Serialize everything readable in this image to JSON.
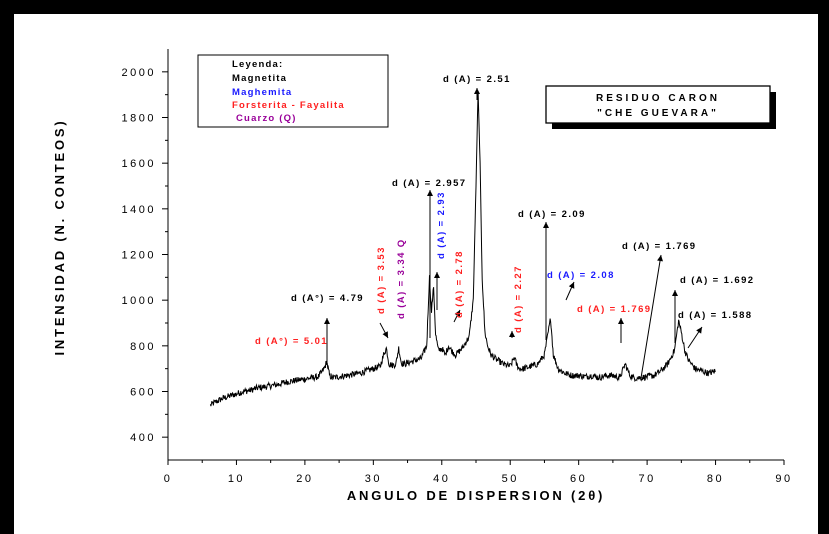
{
  "colors": {
    "magnetita": "#000000",
    "maghemita": "#1a1aff",
    "forsterita": "#ff2020",
    "cuarzo": "#990099",
    "line": "#000000"
  },
  "legend": {
    "title": "Leyenda:",
    "items": [
      {
        "label": "Magnetita",
        "color": "#000000"
      },
      {
        "label": "Maghemita",
        "color": "#1a1aff"
      },
      {
        "label": "Forsterita - Fayalita",
        "color": "#ff2020"
      },
      {
        "label": "Cuarzo (Q)",
        "color": "#990099"
      }
    ]
  },
  "sample_box": {
    "line1": "RESIDUO CARON",
    "line2": "\"CHE GUEVARA\""
  },
  "chart_data": {
    "type": "line",
    "title": "",
    "xlabel": "ANGULO DE DISPERSION (2θ)",
    "ylabel": "INTENSIDAD (N. CONTEOS)",
    "xlim": [
      0,
      90
    ],
    "ylim": [
      300,
      2100
    ],
    "xticks": [
      0,
      10,
      20,
      30,
      40,
      50,
      60,
      70,
      80,
      90
    ],
    "yticks": [
      400,
      600,
      800,
      1000,
      1200,
      1400,
      1600,
      1800,
      2000
    ],
    "grid": false,
    "series": [
      {
        "color": "#000000",
        "x": [
          6.2,
          7,
          8,
          9,
          10,
          11,
          12,
          13,
          14,
          15,
          16,
          17,
          18,
          19,
          20,
          21,
          22,
          22.8,
          23.2,
          23.6,
          24,
          25,
          26,
          27,
          28,
          29,
          30,
          31,
          31.5,
          31.9,
          32.3,
          32.8,
          33.3,
          33.7,
          34.1,
          34.6,
          35,
          36,
          37,
          37.8,
          38.2,
          38.5,
          38.8,
          39.1,
          39.5,
          40,
          40.5,
          41,
          41.4,
          42,
          43,
          44,
          44.6,
          45,
          45.3,
          45.6,
          45.9,
          46.3,
          46.7,
          47.2,
          48,
          49,
          50,
          50.6,
          50.9,
          51.3,
          52,
          53,
          54,
          55,
          55.5,
          55.9,
          56.3,
          57,
          58,
          59,
          60,
          61,
          62,
          63,
          64,
          65,
          66,
          66.8,
          67.5,
          68,
          69,
          70,
          71,
          72,
          73,
          74,
          74.6,
          75,
          75.5,
          76,
          77,
          78,
          79,
          80
        ],
        "y": [
          540,
          555,
          570,
          580,
          590,
          600,
          605,
          615,
          620,
          625,
          630,
          640,
          645,
          650,
          655,
          660,
          665,
          700,
          730,
          670,
          660,
          665,
          670,
          675,
          680,
          690,
          700,
          710,
          760,
          790,
          720,
          715,
          720,
          790,
          725,
          720,
          725,
          735,
          745,
          800,
          1100,
          950,
          1060,
          850,
          780,
          790,
          760,
          800,
          780,
          760,
          790,
          840,
          1000,
          1500,
          1910,
          1600,
          1100,
          860,
          800,
          760,
          740,
          720,
          710,
          750,
          720,
          700,
          700,
          710,
          720,
          760,
          850,
          920,
          760,
          700,
          680,
          670,
          670,
          665,
          670,
          660,
          670,
          670,
          660,
          720,
          670,
          660,
          660,
          665,
          670,
          690,
          720,
          780,
          910,
          860,
          780,
          740,
          700,
          690,
          680,
          690
        ]
      }
    ],
    "annotations": [
      {
        "text": "d (A) = 2.51",
        "color": "#000000",
        "rotated": false
      },
      {
        "text": "d (A) = 2.957",
        "color": "#000000",
        "rotated": false
      },
      {
        "text": "d (A) = 2.09",
        "color": "#000000",
        "rotated": false
      },
      {
        "text": "d (A) = 1.769",
        "color": "#000000",
        "rotated": false
      },
      {
        "text": "d (A) = 1.692",
        "color": "#000000",
        "rotated": false
      },
      {
        "text": "d (A) = 1.588",
        "color": "#000000",
        "rotated": false
      },
      {
        "text": "d (A°) = 4.79",
        "color": "#000000",
        "rotated": false
      },
      {
        "text": "d (A°) = 5.01",
        "color": "#ff2020",
        "rotated": false
      },
      {
        "text": "d (A) = 1.769",
        "color": "#ff2020",
        "rotated": false
      },
      {
        "text": "d (A) = 2.08",
        "color": "#1a1aff",
        "rotated": false
      },
      {
        "text": "d (A) = 3.53",
        "color": "#ff2020",
        "rotated": true
      },
      {
        "text": "d (A) = 3.34 Q",
        "color": "#990099",
        "rotated": true
      },
      {
        "text": "d (A) = 2.93",
        "color": "#1a1aff",
        "rotated": true
      },
      {
        "text": "d (A) = 2.78",
        "color": "#ff2020",
        "rotated": true
      },
      {
        "text": "d (A) = 2.27",
        "color": "#ff2020",
        "rotated": true
      }
    ]
  }
}
